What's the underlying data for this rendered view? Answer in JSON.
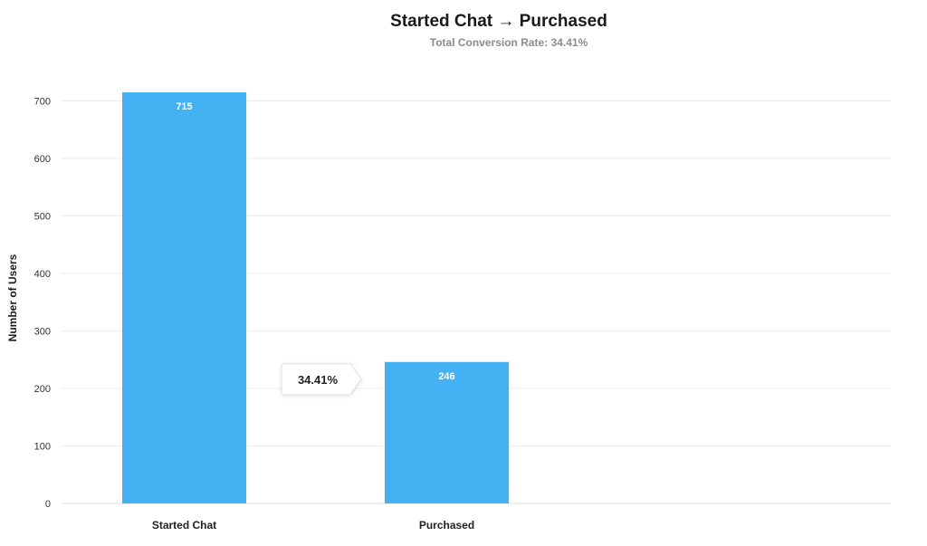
{
  "chart_data": {
    "type": "bar",
    "title": "Started Chat → Purchased",
    "subtitle": "Total Conversion Rate: 34.41%",
    "xlabel": "",
    "ylabel": "Number of Users",
    "categories": [
      "Started Chat",
      "Purchased"
    ],
    "values": [
      715,
      246
    ],
    "data_labels": [
      "715",
      "246"
    ],
    "y_ticks": [
      0,
      100,
      200,
      300,
      400,
      500,
      600,
      700
    ],
    "ylim": [
      0,
      740
    ],
    "grid": true,
    "bar_color": "#44b1f3",
    "step_conversions": [
      {
        "from": "Started Chat",
        "to": "Purchased",
        "label": "34.41%"
      }
    ]
  }
}
